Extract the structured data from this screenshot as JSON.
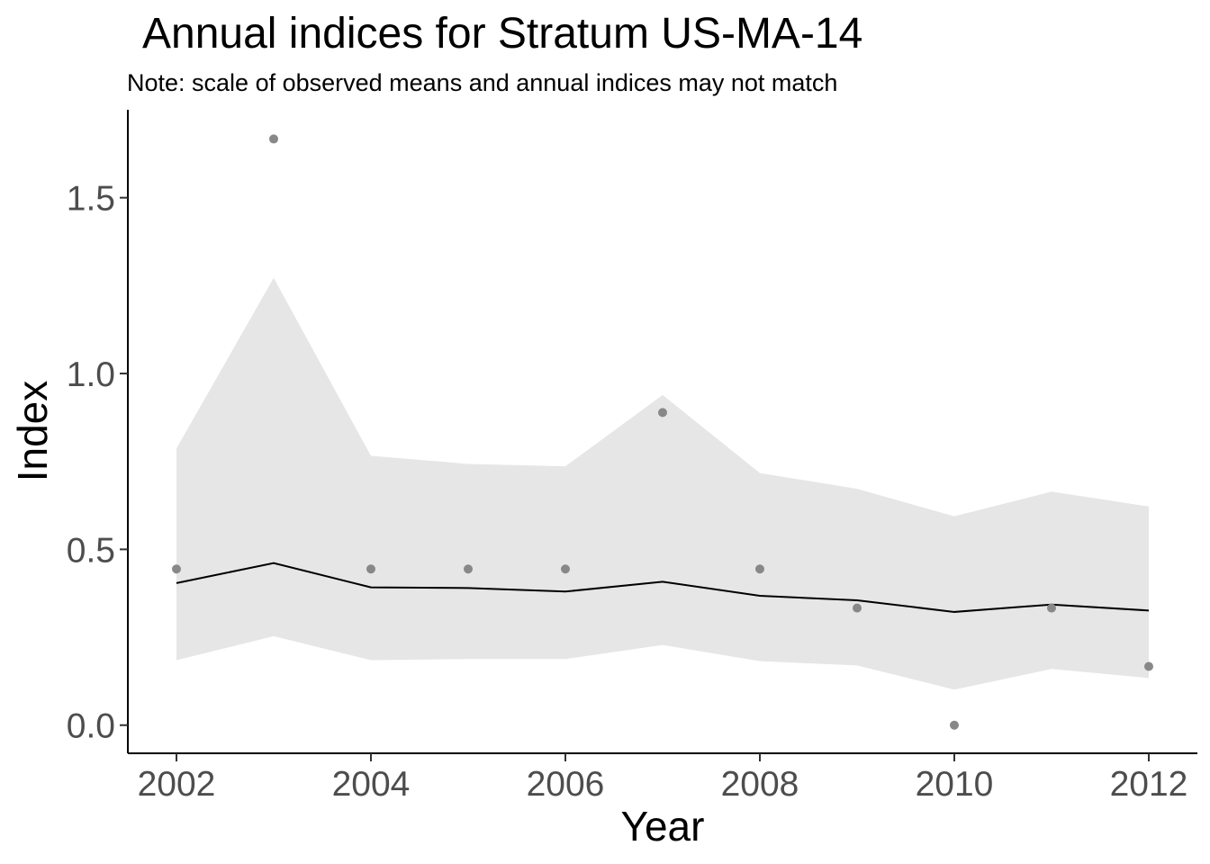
{
  "chart_data": {
    "type": "line",
    "title": "Annual indices for Stratum US-MA-14",
    "subtitle": "Note: scale of observed means and annual indices may not match",
    "xlabel": "Year",
    "ylabel": "Index",
    "xlim": [
      2001.5,
      2012.5
    ],
    "ylim": [
      -0.08,
      1.75
    ],
    "x_ticks": [
      2002,
      2004,
      2006,
      2008,
      2010,
      2012
    ],
    "x_tick_labels": [
      "2002",
      "2004",
      "2006",
      "2008",
      "2010",
      "2012"
    ],
    "y_ticks": [
      0.0,
      0.5,
      1.0,
      1.5
    ],
    "y_tick_labels": [
      "0.0",
      "0.5",
      "1.0",
      "1.5"
    ],
    "grid": false,
    "legend": "none",
    "x": [
      2002,
      2003,
      2004,
      2005,
      2006,
      2007,
      2008,
      2009,
      2010,
      2011,
      2012
    ],
    "series": [
      {
        "kind": "line",
        "values": [
          0.404,
          0.461,
          0.392,
          0.39,
          0.38,
          0.408,
          0.368,
          0.355,
          0.322,
          0.343,
          0.326
        ],
        "color": "#000000"
      },
      {
        "kind": "ribbon",
        "lower": [
          0.185,
          0.253,
          0.185,
          0.188,
          0.188,
          0.228,
          0.182,
          0.17,
          0.101,
          0.16,
          0.134
        ],
        "upper": [
          0.787,
          1.272,
          0.766,
          0.743,
          0.736,
          0.939,
          0.717,
          0.672,
          0.594,
          0.664,
          0.622
        ],
        "color": "#e6e6e6"
      },
      {
        "kind": "points",
        "values": [
          0.444,
          1.667,
          0.444,
          0.444,
          0.444,
          0.889,
          0.444,
          0.333,
          0.0,
          0.333,
          0.167
        ],
        "color": "#888888"
      }
    ]
  }
}
